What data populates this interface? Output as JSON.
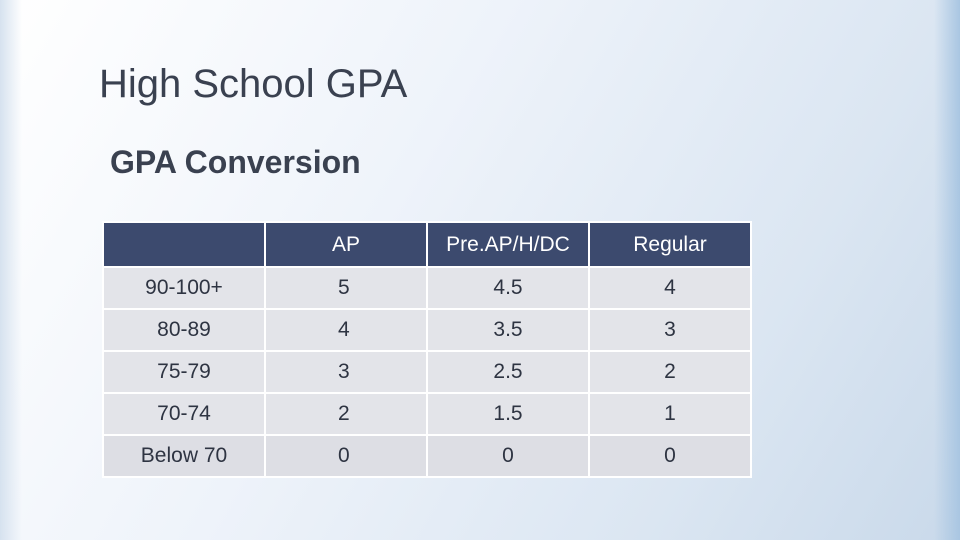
{
  "slide": {
    "title": "High School GPA",
    "subtitle": "GPA Conversion"
  },
  "table": {
    "headers": [
      "",
      "AP",
      "Pre.AP/H/DC",
      "Regular"
    ],
    "rows": [
      [
        "90-100+",
        "5",
        "4.5",
        "4"
      ],
      [
        "80-89",
        "4",
        "3.5",
        "3"
      ],
      [
        "75-79",
        "3",
        "2.5",
        "2"
      ],
      [
        "70-74",
        "2",
        "1.5",
        "1"
      ],
      [
        "Below 70",
        "0",
        "0",
        "0"
      ]
    ]
  },
  "colors": {
    "header_bg": "#3c4a6e",
    "cell_bg": "#e3e4e9",
    "text": "#3a4150"
  }
}
